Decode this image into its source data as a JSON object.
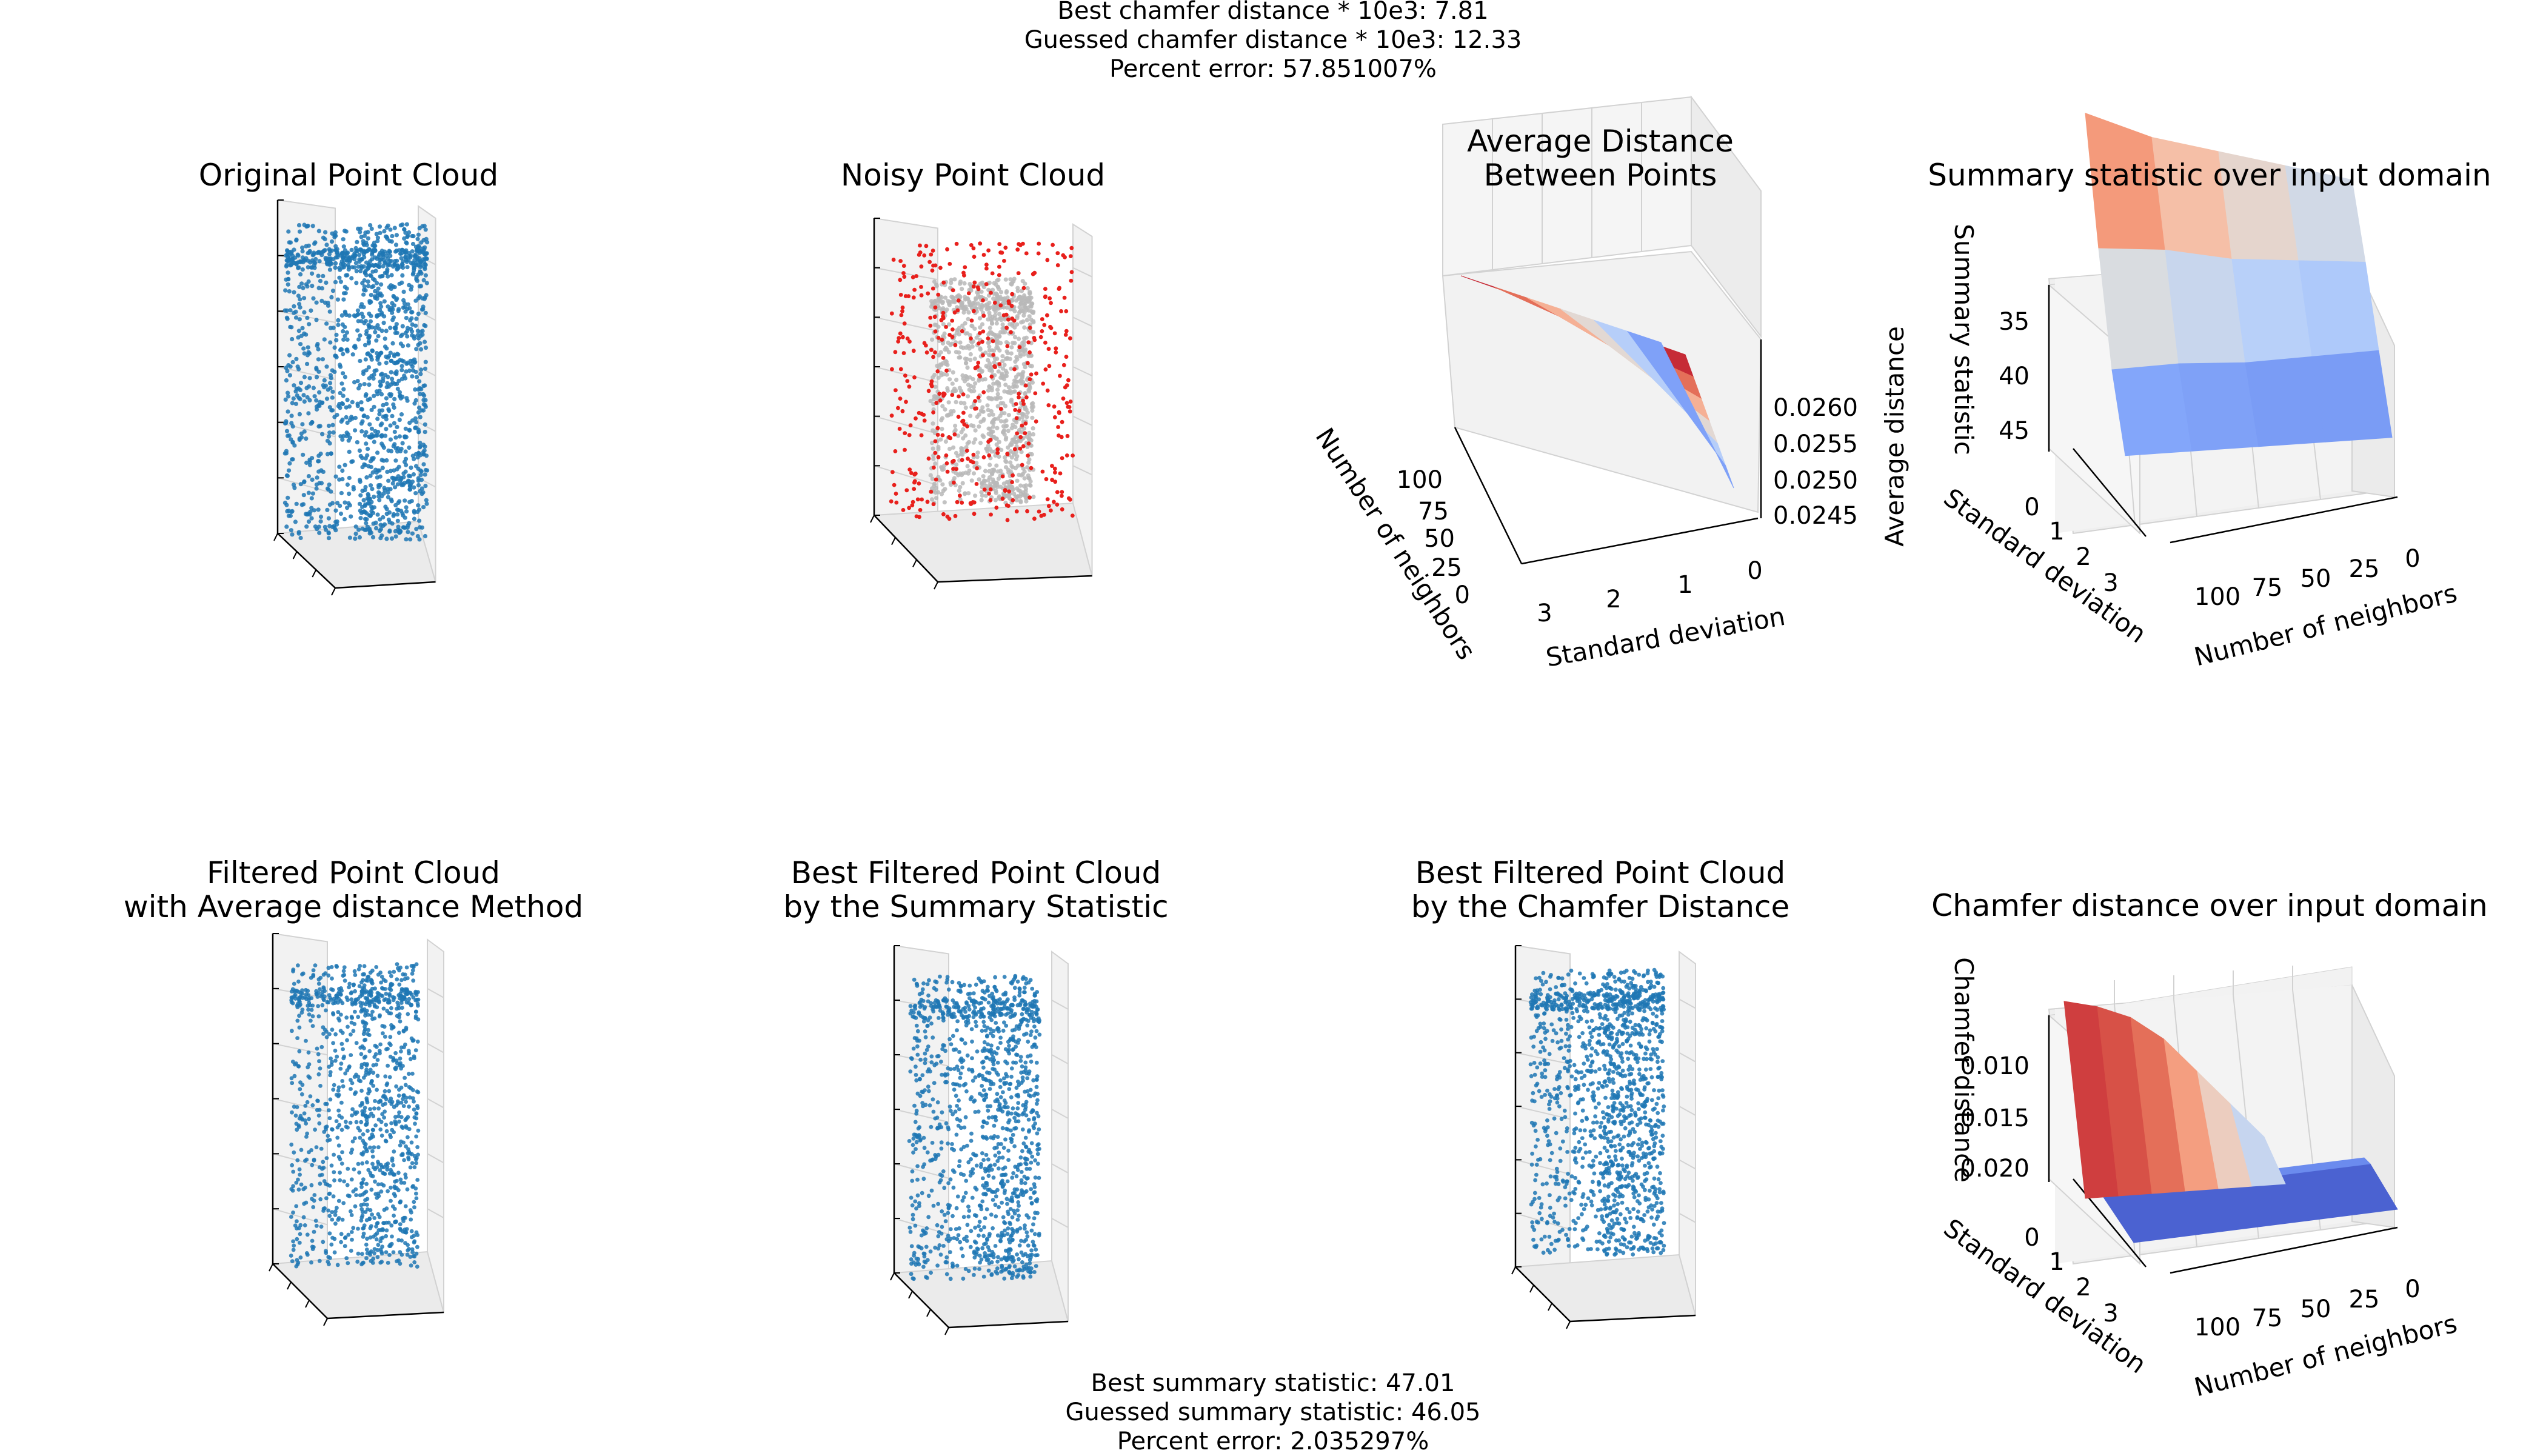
{
  "top_stats": {
    "line1": "Best chamfer distance * 10e3: 7.81",
    "line2": "Guessed chamfer distance * 10e3: 12.33",
    "line3": "Percent error: 57.851007%"
  },
  "bottom_stats": {
    "line1": "Best summary statistic: 47.01",
    "line2": "Guessed summary statistic: 46.05",
    "line3": "Percent error: 2.035297%"
  },
  "colors": {
    "point_blue": "#1f77b4",
    "noise_red": "#e8201c",
    "cloud_gray": "#b8b8b8",
    "pane": "#f2f2f2",
    "grid": "#d2d2d2",
    "cmap": "coolwarm"
  },
  "chart_data": [
    {
      "type": "scatter",
      "subtype": "3d-point-cloud",
      "title": [
        "Original Point Cloud"
      ],
      "colors": [
        "#1f77b4"
      ]
    },
    {
      "type": "scatter",
      "subtype": "3d-point-cloud",
      "title": [
        "Noisy Point Cloud"
      ],
      "colors": [
        "#b8b8b8",
        "#e8201c"
      ]
    },
    {
      "type": "surface",
      "title": [
        "Average Distance",
        "Between Points"
      ],
      "xlabel": "Standard deviation",
      "ylabel": "Number of neighbors",
      "zlabel": "Average distance",
      "x_ticks": [
        "3",
        "2",
        "1",
        "0"
      ],
      "y_ticks": [
        "100",
        "75",
        "50",
        "25",
        "0"
      ],
      "z_ticks": [
        "0.0245",
        "0.0250",
        "0.0255",
        "0.0260"
      ],
      "x": [
        0,
        0.5,
        1,
        1.5,
        2,
        2.5,
        3
      ],
      "zlim": [
        0.0243,
        0.0262
      ],
      "z": [
        0.0244,
        0.0247,
        0.025,
        0.0253,
        0.0256,
        0.0259,
        0.0261
      ]
    },
    {
      "type": "surface",
      "title": [
        "Summary statistic over input domain"
      ],
      "xlabel": "Number of neighbors",
      "ylabel": "Standard deviation",
      "zlabel": "Summary statistic",
      "x_ticks": [
        "100",
        "75",
        "50",
        "25",
        "0"
      ],
      "y_ticks": [
        "0",
        "1",
        "2",
        "3"
      ],
      "z_ticks": [
        "35",
        "40",
        "45"
      ],
      "zlim": [
        30,
        48
      ],
      "z": [
        [
          47,
          44,
          42,
          40,
          38
        ],
        [
          42,
          41,
          39,
          38,
          37
        ],
        [
          36,
          36,
          35,
          35,
          35
        ],
        [
          32,
          32,
          32,
          32,
          32
        ]
      ]
    },
    {
      "type": "scatter",
      "subtype": "3d-point-cloud",
      "title": [
        "Filtered Point Cloud",
        "with Average distance Method"
      ],
      "colors": [
        "#1f77b4"
      ]
    },
    {
      "type": "scatter",
      "subtype": "3d-point-cloud",
      "title": [
        "Best Filtered Point Cloud",
        "by the Summary Statistic"
      ],
      "colors": [
        "#1f77b4"
      ]
    },
    {
      "type": "scatter",
      "subtype": "3d-point-cloud",
      "title": [
        "Best Filtered Point Cloud",
        "by the Chamfer Distance"
      ],
      "colors": [
        "#1f77b4"
      ]
    },
    {
      "type": "surface",
      "title": [
        "Chamfer distance over input domain"
      ],
      "xlabel": "Number of neighbors",
      "ylabel": "Standard deviation",
      "zlabel": "Chamfer distance",
      "x_ticks": [
        "100",
        "75",
        "50",
        "25",
        "0"
      ],
      "y_ticks": [
        "0",
        "1",
        "2",
        "3"
      ],
      "z_ticks": [
        "0.010",
        "0.015",
        "0.020"
      ],
      "zlim": [
        0.005,
        0.024
      ],
      "z_front_row": [
        0.0225,
        0.022,
        0.021,
        0.019,
        0.016,
        0.013,
        0.01
      ],
      "z_back_rows": 0.008
    }
  ]
}
